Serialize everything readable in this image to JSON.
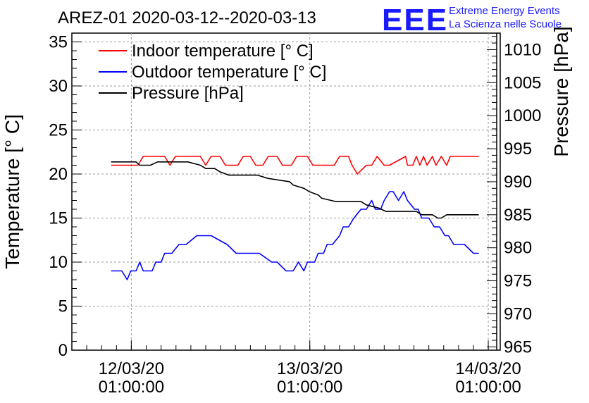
{
  "chart_data": {
    "type": "line",
    "title": "AREZ-01 2020-03-12--2020-03-13",
    "ylabel_left": "Temperature [° C]",
    "ylabel_right": "Pressure [hPa]",
    "xlabel": "",
    "ylim_left": [
      0,
      36
    ],
    "ylim_right": [
      964.5,
      1012.5
    ],
    "xlim": [
      0.0,
      2.4
    ],
    "grid": true,
    "legend_position": "top-left",
    "yticks_left": [
      0,
      5,
      10,
      15,
      20,
      25,
      30,
      35
    ],
    "yticks_right": [
      965,
      970,
      975,
      980,
      985,
      990,
      995,
      1000,
      1005,
      1010
    ],
    "xticks": [
      {
        "x": 0.333,
        "line1": "12/03/20",
        "line2": "01:00:00"
      },
      {
        "x": 1.333,
        "line1": "13/03/20",
        "line2": "01:00:00"
      },
      {
        "x": 2.333,
        "line1": "14/03/20",
        "line2": "01:00:00"
      }
    ],
    "series": [
      {
        "name": "Indoor temperature [° C]",
        "axis": "left",
        "color": "#ff0000",
        "x": [
          0.22,
          0.37,
          0.4,
          0.52,
          0.55,
          0.58,
          0.72,
          0.75,
          0.78,
          0.83,
          0.86,
          0.93,
          0.96,
          1.0,
          1.03,
          1.07,
          1.1,
          1.15,
          1.18,
          1.23,
          1.26,
          1.32,
          1.35,
          1.47,
          1.5,
          1.55,
          1.57,
          1.6,
          1.65,
          1.68,
          1.71,
          1.75,
          1.78,
          1.87,
          1.88,
          1.91,
          1.93,
          1.95,
          1.97,
          1.99,
          2.02,
          2.04,
          2.07,
          2.1,
          2.12,
          2.15,
          2.28
        ],
        "values": [
          21,
          21,
          22,
          22,
          21,
          22,
          22,
          21,
          22,
          22,
          21,
          21,
          22,
          22,
          21,
          21,
          22,
          22,
          21,
          21,
          22,
          22,
          21,
          21,
          22,
          22,
          21,
          20,
          21,
          21,
          22,
          21,
          21,
          22,
          21,
          21,
          22,
          21,
          22,
          21,
          22,
          21,
          22,
          21,
          22,
          22,
          22
        ]
      },
      {
        "name": "Outdoor temperature [° C]",
        "axis": "left",
        "color": "#0000ff",
        "x": [
          0.22,
          0.28,
          0.31,
          0.33,
          0.36,
          0.38,
          0.4,
          0.45,
          0.47,
          0.5,
          0.52,
          0.56,
          0.6,
          0.64,
          0.7,
          0.78,
          0.87,
          0.92,
          0.98,
          1.05,
          1.12,
          1.15,
          1.2,
          1.24,
          1.27,
          1.3,
          1.32,
          1.36,
          1.38,
          1.41,
          1.43,
          1.46,
          1.5,
          1.52,
          1.55,
          1.58,
          1.62,
          1.65,
          1.68,
          1.7,
          1.73,
          1.75,
          1.78,
          1.8,
          1.83,
          1.86,
          1.88,
          1.92,
          1.94,
          1.96,
          1.98,
          2.0,
          2.03,
          2.06,
          2.09,
          2.11,
          2.14,
          2.17,
          2.2,
          2.25,
          2.28
        ],
        "values": [
          9,
          9,
          8,
          9,
          9,
          10,
          9,
          9,
          10,
          10,
          11,
          11,
          12,
          12,
          13,
          13,
          12,
          11,
          11,
          11,
          10,
          10,
          9,
          9,
          10,
          9,
          10,
          10,
          11,
          11,
          12,
          12,
          13,
          14,
          14,
          15,
          16,
          16,
          17,
          16,
          16,
          17,
          18,
          18,
          17,
          18,
          17,
          16,
          16,
          15,
          15,
          15,
          14,
          14,
          13,
          13,
          12,
          12,
          12,
          11,
          11
        ]
      },
      {
        "name": "Pressure [hPa]",
        "axis": "right",
        "color": "#000000",
        "x": [
          0.22,
          0.36,
          0.38,
          0.44,
          0.48,
          0.5,
          0.65,
          0.72,
          0.75,
          0.8,
          0.83,
          0.88,
          1.04,
          1.1,
          1.22,
          1.24,
          1.3,
          1.33,
          1.38,
          1.4,
          1.48,
          1.52,
          1.62,
          1.65,
          1.72,
          1.76,
          1.93,
          1.96,
          2.02,
          2.05,
          2.07,
          2.1,
          2.28
        ],
        "values": [
          993,
          993,
          992.5,
          992.5,
          993,
          993,
          993,
          992.5,
          992,
          992,
          991.5,
          991,
          991,
          990.5,
          990,
          989.5,
          989,
          988.5,
          988,
          987.5,
          987,
          987,
          987,
          986.5,
          986,
          985.5,
          985.5,
          985,
          985,
          984.5,
          984.5,
          985,
          985
        ]
      }
    ]
  },
  "logo": {
    "letters": "EEE",
    "line1": "Extreme Energy Events",
    "line2": "La Scienza nelle Scuole"
  }
}
